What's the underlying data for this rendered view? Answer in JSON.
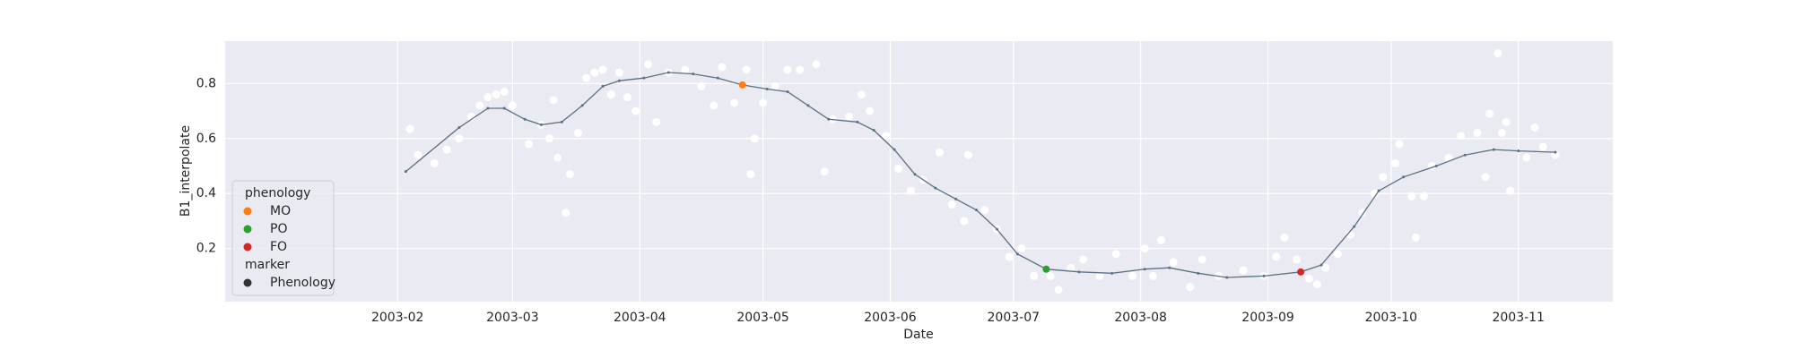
{
  "chart_data": {
    "type": "line",
    "xlabel": "Date",
    "ylabel": "B1_interpolate",
    "xlim": [
      "2002-12-21",
      "2003-11-24"
    ],
    "ylim": [
      0.007,
      0.954
    ],
    "xticks": [
      {
        "value": "2003-02-01",
        "label": "2003-02"
      },
      {
        "value": "2003-03-01",
        "label": "2003-03"
      },
      {
        "value": "2003-04-01",
        "label": "2003-04"
      },
      {
        "value": "2003-05-01",
        "label": "2003-05"
      },
      {
        "value": "2003-06-01",
        "label": "2003-06"
      },
      {
        "value": "2003-07-01",
        "label": "2003-07"
      },
      {
        "value": "2003-08-01",
        "label": "2003-08"
      },
      {
        "value": "2003-09-01",
        "label": "2003-09"
      },
      {
        "value": "2003-10-01",
        "label": "2003-10"
      },
      {
        "value": "2003-11-01",
        "label": "2003-11"
      }
    ],
    "yticks": [
      0.2,
      0.4,
      0.6,
      0.8
    ],
    "grid": true,
    "legend_corner": "lower left",
    "legend_title": "phenology",
    "marker_title": "marker",
    "marker_entries": [
      {
        "name": "Phenology",
        "color": "#333333"
      }
    ],
    "line": {
      "color": "#5a7184",
      "x": [
        "2003-02-03",
        "2003-02-16",
        "2003-02-23",
        "2003-02-27",
        "2003-03-04",
        "2003-03-08",
        "2003-03-13",
        "2003-03-18",
        "2003-03-23",
        "2003-03-27",
        "2003-04-02",
        "2003-04-08",
        "2003-04-14",
        "2003-04-20",
        "2003-04-26",
        "2003-05-02",
        "2003-05-07",
        "2003-05-12",
        "2003-05-17",
        "2003-05-24",
        "2003-05-28",
        "2003-06-02",
        "2003-06-07",
        "2003-06-12",
        "2003-06-17",
        "2003-06-22",
        "2003-06-27",
        "2003-07-02",
        "2003-07-09",
        "2003-07-17",
        "2003-07-25",
        "2003-08-02",
        "2003-08-08",
        "2003-08-15",
        "2003-08-22",
        "2003-08-31",
        "2003-09-09",
        "2003-09-14",
        "2003-09-22",
        "2003-09-28",
        "2003-10-04",
        "2003-10-12",
        "2003-10-19",
        "2003-10-26",
        "2003-11-01",
        "2003-11-10"
      ],
      "values": [
        0.48,
        0.64,
        0.71,
        0.71,
        0.67,
        0.65,
        0.66,
        0.72,
        0.79,
        0.81,
        0.82,
        0.84,
        0.835,
        0.82,
        0.795,
        0.78,
        0.77,
        0.72,
        0.67,
        0.66,
        0.63,
        0.56,
        0.47,
        0.42,
        0.38,
        0.34,
        0.27,
        0.18,
        0.125,
        0.115,
        0.11,
        0.125,
        0.13,
        0.11,
        0.095,
        0.1,
        0.115,
        0.14,
        0.28,
        0.41,
        0.46,
        0.5,
        0.54,
        0.56,
        0.555,
        0.55
      ]
    },
    "scatter": {
      "color": "#ffffff",
      "x": [
        "2003-02-04",
        "2003-02-06",
        "2003-02-10",
        "2003-02-13",
        "2003-02-16",
        "2003-02-19",
        "2003-02-21",
        "2003-02-23",
        "2003-02-25",
        "2003-02-27",
        "2003-03-01",
        "2003-03-05",
        "2003-03-08",
        "2003-03-10",
        "2003-03-11",
        "2003-03-12",
        "2003-03-14",
        "2003-03-15",
        "2003-03-17",
        "2003-03-19",
        "2003-03-21",
        "2003-03-23",
        "2003-03-25",
        "2003-03-27",
        "2003-03-29",
        "2003-03-31",
        "2003-04-03",
        "2003-04-05",
        "2003-04-08",
        "2003-04-12",
        "2003-04-16",
        "2003-04-19",
        "2003-04-21",
        "2003-04-24",
        "2003-04-27",
        "2003-04-28",
        "2003-04-29",
        "2003-05-01",
        "2003-05-04",
        "2003-05-07",
        "2003-05-10",
        "2003-05-14",
        "2003-05-16",
        "2003-05-18",
        "2003-05-22",
        "2003-05-25",
        "2003-05-27",
        "2003-05-31",
        "2003-06-03",
        "2003-06-06",
        "2003-06-09",
        "2003-06-13",
        "2003-06-16",
        "2003-06-19",
        "2003-06-20",
        "2003-06-24",
        "2003-06-27",
        "2003-06-30",
        "2003-07-03",
        "2003-07-06",
        "2003-07-10",
        "2003-07-12",
        "2003-07-15",
        "2003-07-18",
        "2003-07-22",
        "2003-07-26",
        "2003-07-30",
        "2003-08-02",
        "2003-08-04",
        "2003-08-06",
        "2003-08-09",
        "2003-08-13",
        "2003-08-16",
        "2003-08-20",
        "2003-08-26",
        "2003-08-31",
        "2003-09-03",
        "2003-09-05",
        "2003-09-08",
        "2003-09-11",
        "2003-09-13",
        "2003-09-15",
        "2003-09-18",
        "2003-09-21",
        "2003-09-24",
        "2003-09-27",
        "2003-09-29",
        "2003-10-02",
        "2003-10-03",
        "2003-10-06",
        "2003-10-07",
        "2003-10-09",
        "2003-10-11",
        "2003-10-15",
        "2003-10-18",
        "2003-10-22",
        "2003-10-24",
        "2003-10-25",
        "2003-10-27",
        "2003-10-28",
        "2003-10-29",
        "2003-10-30",
        "2003-11-03",
        "2003-11-05",
        "2003-11-07",
        "2003-11-10"
      ],
      "values": [
        0.635,
        0.54,
        0.51,
        0.56,
        0.6,
        0.68,
        0.72,
        0.75,
        0.76,
        0.77,
        0.72,
        0.58,
        0.65,
        0.6,
        0.74,
        0.53,
        0.33,
        0.47,
        0.62,
        0.82,
        0.84,
        0.85,
        0.76,
        0.84,
        0.75,
        0.7,
        0.87,
        0.66,
        0.84,
        0.85,
        0.79,
        0.72,
        0.86,
        0.73,
        0.85,
        0.47,
        0.6,
        0.73,
        0.79,
        0.85,
        0.85,
        0.87,
        0.48,
        0.67,
        0.68,
        0.76,
        0.7,
        0.61,
        0.49,
        0.41,
        0.45,
        0.55,
        0.36,
        0.3,
        0.54,
        0.34,
        0.27,
        0.17,
        0.2,
        0.1,
        0.1,
        0.05,
        0.13,
        0.16,
        0.1,
        0.18,
        0.1,
        0.2,
        0.1,
        0.23,
        0.15,
        0.06,
        0.16,
        0.1,
        0.12,
        0.1,
        0.17,
        0.24,
        0.16,
        0.09,
        0.07,
        0.13,
        0.18,
        0.25,
        0.33,
        0.4,
        0.46,
        0.51,
        0.58,
        0.39,
        0.24,
        0.39,
        0.5,
        0.53,
        0.61,
        0.62,
        0.46,
        0.69,
        0.91,
        0.62,
        0.66,
        0.41,
        0.53,
        0.64,
        0.57,
        0.54
      ]
    },
    "series": [
      {
        "name": "MO",
        "color": "#ff7f0e",
        "x": [
          "2003-04-26"
        ],
        "values": [
          0.795
        ]
      },
      {
        "name": "PO",
        "color": "#2ca02c",
        "x": [
          "2003-07-09"
        ],
        "values": [
          0.125
        ]
      },
      {
        "name": "FO",
        "color": "#d62728",
        "x": [
          "2003-09-09"
        ],
        "values": [
          0.115
        ]
      }
    ]
  }
}
